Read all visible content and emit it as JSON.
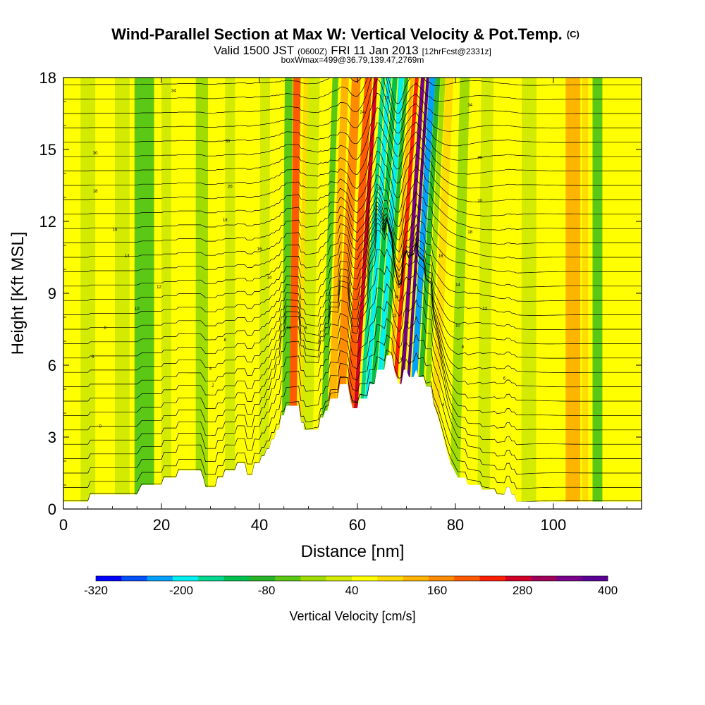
{
  "chart_data": {
    "type": "heatmap",
    "title": "Wind-Parallel Section at Max W: Vertical Velocity & Pot.Temp.",
    "title_suffix": "(C)",
    "subtitle": {
      "valid_prefix": "Valid 1500 JST",
      "utc": "(0600Z)",
      "date": "FRI 11 Jan 2013",
      "forecast": "[12hrFcst@2331z]"
    },
    "subtitle2": "boxWmax=499@36.79,139.47,2769m",
    "xlabel": "Distance [nm]",
    "ylabel": "Height [Kft MSL]",
    "xlim": [
      0,
      118
    ],
    "ylim": [
      0,
      18
    ],
    "x_ticks": [
      0,
      20,
      40,
      60,
      80,
      100
    ],
    "y_ticks": [
      0,
      3,
      6,
      9,
      12,
      15,
      18
    ],
    "colorbar": {
      "label": "Vertical Velocity [cm/s]",
      "tick_labels": [
        "-320",
        "-200",
        "-80",
        "40",
        "160",
        "280",
        "400"
      ],
      "colors": [
        "#0000ff",
        "#0050ff",
        "#00a0ff",
        "#00f0f0",
        "#00d890",
        "#00c050",
        "#28b428",
        "#5ac814",
        "#a0dc00",
        "#d2eb00",
        "#ffff00",
        "#ffdc00",
        "#ffb400",
        "#ff8c00",
        "#ff5a00",
        "#ff1e00",
        "#d20028",
        "#a0005a",
        "#78008c",
        "#5a0096"
      ]
    },
    "velocity_bands": [
      {
        "x": 1,
        "w": 4,
        "v": 0
      },
      {
        "x": 5,
        "w": 3,
        "v": -30
      },
      {
        "x": 12,
        "w": 3,
        "v": -30
      },
      {
        "x": 16.5,
        "w": 4,
        "v": -90
      },
      {
        "x": 21,
        "w": 2,
        "v": -30
      },
      {
        "x": 24,
        "w": 2,
        "v": 10
      },
      {
        "x": 28.5,
        "w": 3,
        "v": -60
      },
      {
        "x": 31,
        "w": 3,
        "v": 0
      },
      {
        "x": 34,
        "w": 2,
        "v": -30
      },
      {
        "x": 38,
        "w": 3,
        "v": 10
      },
      {
        "x": 41,
        "w": 2,
        "v": -30
      },
      {
        "x": 45.5,
        "w": 1.6,
        "v": -100
      },
      {
        "x": 47,
        "w": 1.5,
        "v": 160
      },
      {
        "x": 48.8,
        "w": 1.4,
        "v": 40
      },
      {
        "x": 50,
        "w": 2.4,
        "v": -40
      },
      {
        "x": 53.6,
        "w": 1.2,
        "v": -100
      },
      {
        "x": 55.2,
        "w": 1.5,
        "v": 100
      },
      {
        "x": 57,
        "w": 1.8,
        "v": 150
      },
      {
        "x": 59,
        "w": 1.5,
        "v": 190
      },
      {
        "x": 60.2,
        "w": 0.8,
        "v": 250
      },
      {
        "x": 61.5,
        "w": 0.8,
        "v": -220
      },
      {
        "x": 62.5,
        "w": 1.0,
        "v": -280
      },
      {
        "x": 63.6,
        "w": 1.0,
        "v": -180
      },
      {
        "x": 64.8,
        "w": 1.1,
        "v": -260
      },
      {
        "x": 65.8,
        "w": 0.8,
        "v": -160
      },
      {
        "x": 67,
        "w": 0.7,
        "v": 100
      },
      {
        "x": 68,
        "w": 0.8,
        "v": 200
      },
      {
        "x": 69.4,
        "w": 0.8,
        "v": 320
      },
      {
        "x": 70.6,
        "w": 0.6,
        "v": 400
      },
      {
        "x": 71.8,
        "w": 1.2,
        "v": -320
      },
      {
        "x": 73.2,
        "w": 1.0,
        "v": -160
      },
      {
        "x": 74.6,
        "w": 1.0,
        "v": -80
      },
      {
        "x": 76.4,
        "w": 1.6,
        "v": 70
      },
      {
        "x": 78.5,
        "w": 1.5,
        "v": 10
      },
      {
        "x": 80.5,
        "w": 2,
        "v": -80
      },
      {
        "x": 83,
        "w": 2,
        "v": 10
      },
      {
        "x": 86,
        "w": 2.5,
        "v": -40
      },
      {
        "x": 90,
        "w": 3,
        "v": 20
      },
      {
        "x": 95,
        "w": 3,
        "v": -40
      },
      {
        "x": 99,
        "w": 3,
        "v": 10
      },
      {
        "x": 104,
        "w": 3,
        "v": 80
      },
      {
        "x": 106.5,
        "w": 1.2,
        "v": 40
      },
      {
        "x": 109,
        "w": 2,
        "v": -90
      },
      {
        "x": 113,
        "w": 3,
        "v": 30
      }
    ],
    "terrain": [
      [
        0,
        0.3
      ],
      [
        5,
        0.3
      ],
      [
        5.5,
        0.6
      ],
      [
        15,
        0.6
      ],
      [
        16,
        1.0
      ],
      [
        20,
        1.0
      ],
      [
        20.5,
        1.3
      ],
      [
        23,
        1.3
      ],
      [
        23.5,
        1.6
      ],
      [
        28,
        1.6
      ],
      [
        28.5,
        1.3
      ],
      [
        29,
        0.9
      ],
      [
        31,
        0.9
      ],
      [
        31.5,
        1.3
      ],
      [
        32.5,
        1.3
      ],
      [
        33,
        1.6
      ],
      [
        35,
        1.6
      ],
      [
        35.5,
        1.9
      ],
      [
        37,
        1.9
      ],
      [
        37.5,
        1.4
      ],
      [
        38.5,
        1.4
      ],
      [
        39,
        1.9
      ],
      [
        40,
        1.9
      ],
      [
        40.5,
        2.2
      ],
      [
        41,
        2.2
      ],
      [
        41.5,
        2.5
      ],
      [
        42,
        2.5
      ],
      [
        42.5,
        2.9
      ],
      [
        43,
        2.9
      ],
      [
        43.5,
        3.3
      ],
      [
        44,
        3.3
      ],
      [
        44.5,
        3.9
      ],
      [
        45,
        3.9
      ],
      [
        45.5,
        4.3
      ],
      [
        48,
        4.3
      ],
      [
        48.5,
        3.6
      ],
      [
        49,
        3.6
      ],
      [
        49,
        3.3
      ],
      [
        52,
        3.3
      ],
      [
        52.5,
        3.8
      ],
      [
        53,
        3.8
      ],
      [
        53.5,
        4.1
      ],
      [
        54,
        4.1
      ],
      [
        54.5,
        4.6
      ],
      [
        56,
        4.6
      ],
      [
        56.5,
        5.2
      ],
      [
        58,
        5.2
      ],
      [
        58.5,
        4.6
      ],
      [
        59,
        4.2
      ],
      [
        60,
        4.2
      ],
      [
        60.5,
        4.6
      ],
      [
        62,
        4.6
      ],
      [
        62.5,
        5.2
      ],
      [
        63.5,
        5.2
      ],
      [
        64,
        5.8
      ],
      [
        65.5,
        5.8
      ],
      [
        66,
        6.4
      ],
      [
        67,
        6.4
      ],
      [
        67.5,
        5.8
      ],
      [
        68,
        5.5
      ],
      [
        68.5,
        5.2
      ],
      [
        69,
        5.2
      ],
      [
        69.5,
        5.8
      ],
      [
        70,
        5.8
      ],
      [
        70.5,
        5.5
      ],
      [
        71.5,
        5.5
      ],
      [
        72,
        5.8
      ],
      [
        72.5,
        5.5
      ],
      [
        73.5,
        5.5
      ],
      [
        74,
        5.1
      ],
      [
        75,
        5.1
      ],
      [
        75.5,
        4.4
      ],
      [
        76,
        4.1
      ],
      [
        76.5,
        3.8
      ],
      [
        77,
        3.4
      ],
      [
        77.5,
        3.0
      ],
      [
        78,
        2.6
      ],
      [
        78.5,
        2.2
      ],
      [
        79,
        1.9
      ],
      [
        79.5,
        1.7
      ],
      [
        80,
        1.5
      ],
      [
        80.5,
        1.3
      ],
      [
        82,
        1.3
      ],
      [
        82.5,
        1.0
      ],
      [
        85,
        1.0
      ],
      [
        85.5,
        0.8
      ],
      [
        88,
        0.8
      ],
      [
        88.5,
        0.6
      ],
      [
        90,
        0.6
      ],
      [
        90.5,
        0.9
      ],
      [
        91,
        0.9
      ],
      [
        91.5,
        0.6
      ],
      [
        92,
        0.6
      ],
      [
        92.5,
        0.3
      ],
      [
        118,
        0.3
      ]
    ],
    "isentrope_labels": [
      {
        "x": 22.5,
        "y": 17.4,
        "text": "34"
      },
      {
        "x": 33.5,
        "y": 15.3,
        "text": "30"
      },
      {
        "x": 6.5,
        "y": 14.8,
        "text": "30"
      },
      {
        "x": 34,
        "y": 13.4,
        "text": "20"
      },
      {
        "x": 6.5,
        "y": 13.2,
        "text": "18"
      },
      {
        "x": 33,
        "y": 12.0,
        "text": "18"
      },
      {
        "x": 10.5,
        "y": 11.6,
        "text": "16"
      },
      {
        "x": 40,
        "y": 10.8,
        "text": "16"
      },
      {
        "x": 13,
        "y": 10.5,
        "text": "14"
      },
      {
        "x": 42,
        "y": 9.6,
        "text": "14"
      },
      {
        "x": 19.5,
        "y": 9.2,
        "text": "12"
      },
      {
        "x": 54,
        "y": 8.9,
        "text": "12"
      },
      {
        "x": 15,
        "y": 8.3,
        "text": "10"
      },
      {
        "x": 8.5,
        "y": 7.5,
        "text": "8"
      },
      {
        "x": 6,
        "y": 6.3,
        "text": "6"
      },
      {
        "x": 33,
        "y": 7.0,
        "text": "8"
      },
      {
        "x": 30,
        "y": 5.8,
        "text": "4"
      },
      {
        "x": 30.5,
        "y": 5.1,
        "text": "2"
      },
      {
        "x": 7.5,
        "y": 3.4,
        "text": "0"
      },
      {
        "x": 46,
        "y": 7.5,
        "text": "10"
      },
      {
        "x": 49.5,
        "y": 7.5,
        "text": "8"
      },
      {
        "x": 61,
        "y": 16.5,
        "text": "24"
      },
      {
        "x": 66,
        "y": 17.1,
        "text": "28"
      },
      {
        "x": 64.5,
        "y": 13.3,
        "text": "20"
      },
      {
        "x": 65,
        "y": 11.6,
        "text": "16"
      },
      {
        "x": 68,
        "y": 8.8,
        "text": "14"
      },
      {
        "x": 67.5,
        "y": 8.0,
        "text": "12"
      },
      {
        "x": 70,
        "y": 7.7,
        "text": "10"
      },
      {
        "x": 69,
        "y": 6.2,
        "text": "8"
      },
      {
        "x": 77,
        "y": 10.5,
        "text": "16"
      },
      {
        "x": 80.5,
        "y": 9.3,
        "text": "14"
      },
      {
        "x": 86,
        "y": 8.3,
        "text": "12"
      },
      {
        "x": 80.5,
        "y": 7.6,
        "text": "10"
      },
      {
        "x": 81.5,
        "y": 6.7,
        "text": "8"
      },
      {
        "x": 90,
        "y": 5.4,
        "text": "6"
      },
      {
        "x": 77.5,
        "y": 4.3,
        "text": "4"
      },
      {
        "x": 83,
        "y": 16.8,
        "text": "34"
      },
      {
        "x": 85,
        "y": 14.6,
        "text": "30"
      },
      {
        "x": 85,
        "y": 12.8,
        "text": "20"
      },
      {
        "x": 83,
        "y": 11.5,
        "text": "18"
      }
    ]
  }
}
